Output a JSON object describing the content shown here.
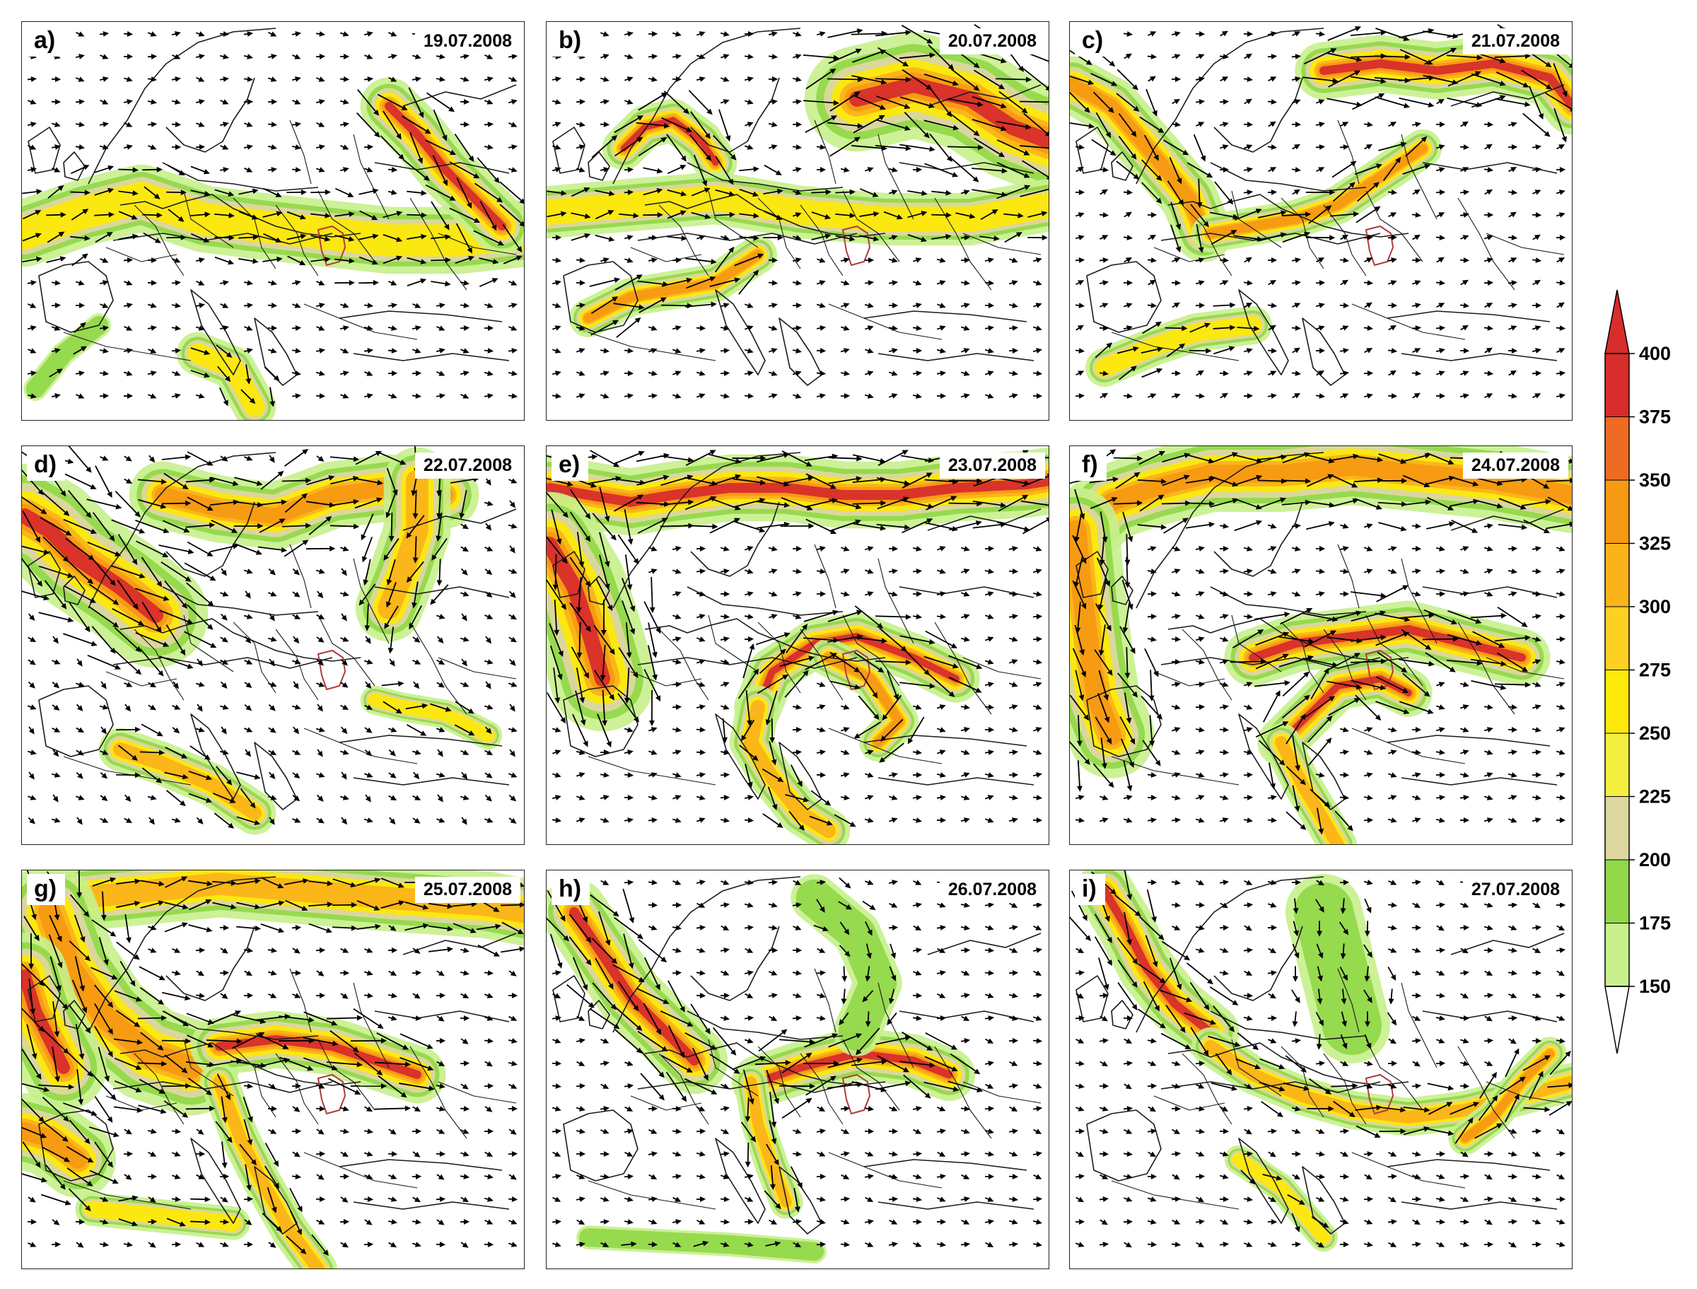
{
  "figure": {
    "palette": [
      "#ffffff",
      "#c7f08c",
      "#92d84a",
      "#ddd7a0",
      "#f4ef3e",
      "#fde90a",
      "#fed023",
      "#fbb31a",
      "#f79a13",
      "#ed6b22",
      "#d72d2b"
    ],
    "colorbar": {
      "ticks": [
        "150",
        "175",
        "200",
        "225",
        "250",
        "275",
        "300",
        "325",
        "350",
        "375",
        "400"
      ],
      "min": 150,
      "max": 400
    },
    "panels": [
      {
        "label": "a)",
        "date": "19.07.2008"
      },
      {
        "label": "b)",
        "date": "20.07.2008"
      },
      {
        "label": "c)",
        "date": "21.07.2008"
      },
      {
        "label": "d)",
        "date": "22.07.2008"
      },
      {
        "label": "e)",
        "date": "23.07.2008"
      },
      {
        "label": "f)",
        "date": "24.07.2008"
      },
      {
        "label": "g)",
        "date": "25.07.2008"
      },
      {
        "label": "h)",
        "date": "26.07.2008"
      },
      {
        "label": "i)",
        "date": "27.07.2008"
      }
    ]
  }
}
